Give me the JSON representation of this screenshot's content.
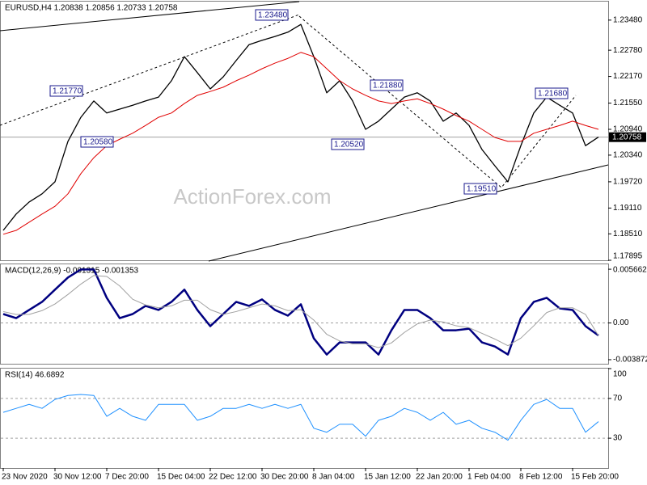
{
  "chart_data": [
    {
      "type": "line",
      "title": "EURUSD,H4 1.20838 1.20856 1.20733 1.20758",
      "watermark": "ActionForex.com",
      "current_price": 1.20758,
      "annotations": [
        "1.23480",
        "1.21770",
        "1.20580",
        "1.21880",
        "1.20520",
        "1.19510",
        "1.21680"
      ],
      "ylim": [
        1.17895,
        1.2391
      ],
      "yticks": [
        {
          "value": 1.2348,
          "label": "1.23480"
        },
        {
          "value": 1.2278,
          "label": "1.22780"
        },
        {
          "value": 1.2217,
          "label": "1.22170"
        },
        {
          "value": 1.2155,
          "label": "1.21550"
        },
        {
          "value": 1.2094,
          "label": "1.20940"
        },
        {
          "value": 1.2034,
          "label": "1.20340"
        },
        {
          "value": 1.1972,
          "label": "1.19720"
        },
        {
          "value": 1.1911,
          "label": "1.19110"
        },
        {
          "value": 1.1851,
          "label": "1.18510"
        },
        1.17895
      ],
      "series": [
        {
          "color": "#000000",
          "width": 1.3,
          "values": [
            1.1859,
            1.1897,
            1.1925,
            1.1944,
            1.1972,
            1.2066,
            1.2122,
            1.216,
            1.2132,
            1.2141,
            1.215,
            1.216,
            1.2169,
            1.2207,
            1.2263,
            1.2226,
            1.2188,
            1.2216,
            1.2254,
            1.2291,
            1.2301,
            1.231,
            1.232,
            1.2338,
            1.2263,
            1.2179,
            1.2207,
            1.216,
            1.2094,
            1.2113,
            1.2141,
            1.2169,
            1.2179,
            1.216,
            1.2113,
            1.2132,
            1.2103,
            1.2047,
            1.2009,
            1.1972,
            1.2056,
            1.2132,
            1.2169,
            1.215,
            1.2132,
            1.2056,
            1.2076
          ]
        },
        {
          "color": "#e00000",
          "width": 1,
          "values": [
            1.185,
            1.1859,
            1.1878,
            1.1897,
            1.1915,
            1.1944,
            1.1991,
            1.2028,
            1.2056,
            1.2071,
            1.2085,
            1.2103,
            1.2122,
            1.2132,
            1.2154,
            1.2173,
            1.2182,
            1.2192,
            1.2207,
            1.222,
            1.2235,
            1.2248,
            1.2259,
            1.2273,
            1.2263,
            1.2235,
            1.2207,
            1.2188,
            1.2173,
            1.216,
            1.2154,
            1.216,
            1.2165,
            1.2154,
            1.2141,
            1.2126,
            1.2113,
            1.2094,
            1.2075,
            1.2066,
            1.2066,
            1.2085,
            1.2094,
            1.2103,
            1.2113,
            1.2103,
            1.2094
          ]
        }
      ]
    },
    {
      "type": "line",
      "title": "MACD(12,26,9) -0.001315 -0.001353",
      "ylim": [
        -0.0043,
        0.00618
      ],
      "yticks": [
        0.005662,
        {
          "value": 0,
          "label": "0.00"
        },
        -0.003872
      ],
      "levels": [
        0
      ],
      "series": [
        {
          "color": "#000080",
          "width": 2.5,
          "values": [
            0.00094,
            0.00051,
            0.00137,
            0.00222,
            0.00351,
            0.00479,
            0.00564,
            0.00564,
            0.00265,
            0.00051,
            0.00094,
            0.0018,
            0.00137,
            0.00222,
            0.00351,
            0.00137,
            -0.00034,
            0.00094,
            0.00222,
            0.0018,
            0.00248,
            0.00137,
            0.00077,
            0.00197,
            -0.00162,
            -0.00333,
            -0.00205,
            -0.00205,
            -0.00205,
            -0.00333,
            -0.00077,
            0.00137,
            0.00137,
            0.00051,
            -0.00077,
            -0.00077,
            -0.0006,
            -0.00205,
            -0.00248,
            -0.00333,
            0.00051,
            0.00222,
            0.00265,
            0.00154,
            0.00137,
            -0.00034,
            -0.00132
          ]
        },
        {
          "color": "#a0a0a0",
          "width": 1,
          "values": [
            0.0012,
            0.0009,
            0.0009,
            0.0013,
            0.002,
            0.003,
            0.0041,
            0.005,
            0.0049,
            0.0039,
            0.0025,
            0.0019,
            0.0016,
            0.0018,
            0.0024,
            0.0024,
            0.0014,
            0.0009,
            0.0012,
            0.0016,
            0.002,
            0.0018,
            0.0013,
            0.0014,
            0.0003,
            -0.0012,
            -0.0019,
            -0.0022,
            -0.0022,
            -0.0026,
            -0.0021,
            -0.001,
            -0.0001,
            0.0003,
            0.0001,
            -0.0003,
            -0.0005,
            -0.0011,
            -0.0017,
            -0.0024,
            -0.0016,
            -0.0003,
            0.0011,
            0.0016,
            0.0016,
            0.0009,
            -0.00135
          ]
        }
      ]
    },
    {
      "type": "line",
      "title": "RSI(14) 46.6892",
      "ylim": [
        0,
        100
      ],
      "yticks": [
        100,
        70,
        30
      ],
      "levels": [
        70,
        30
      ],
      "categories": [
        "23 Nov 2020",
        null,
        null,
        null,
        "30 Nov 12:00",
        null,
        null,
        null,
        "7 Dec 20:00",
        null,
        null,
        null,
        "15 Dec 04:00",
        null,
        null,
        null,
        "22 Dec 12:00",
        null,
        null,
        null,
        "30 Dec 20:00",
        null,
        null,
        null,
        "8 Jan 04:00",
        null,
        null,
        null,
        "15 Jan 12:00",
        null,
        null,
        null,
        "22 Jan 20:00",
        null,
        null,
        null,
        "1 Feb 04:00",
        null,
        null,
        null,
        "8 Feb 12:00",
        null,
        null,
        null,
        "15 Feb 20:00",
        null,
        null
      ],
      "series": [
        {
          "color": "#1e90ff",
          "width": 1,
          "values": [
            56,
            60,
            64,
            60,
            69,
            73,
            74,
            73,
            52,
            60,
            52,
            48,
            64,
            64,
            64,
            48,
            52,
            60,
            60,
            64,
            60,
            64,
            60,
            64,
            40,
            36,
            44,
            44,
            32,
            48,
            52,
            60,
            56,
            48,
            56,
            44,
            48,
            40,
            36,
            28,
            48,
            64,
            69,
            60,
            60,
            36,
            46.69
          ]
        }
      ]
    }
  ]
}
